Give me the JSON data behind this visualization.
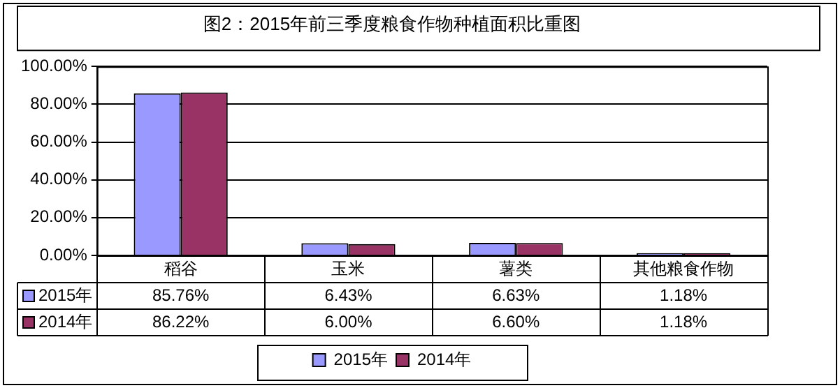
{
  "chart_data": {
    "type": "bar",
    "title": "图2：2015年前三季度粮食作物种植面积比重图",
    "categories": [
      "稻谷",
      "玉米",
      "薯类",
      "其他粮食作物"
    ],
    "series": [
      {
        "name": "2015年",
        "color": "#9999ff",
        "values": [
          85.76,
          6.43,
          6.63,
          1.18
        ],
        "value_labels": [
          "85.76%",
          "6.43%",
          "6.63%",
          "1.18%"
        ]
      },
      {
        "name": "2014年",
        "color": "#993366",
        "values": [
          86.22,
          6.0,
          6.6,
          1.18
        ],
        "value_labels": [
          "86.22%",
          "6.00%",
          "6.60%",
          "1.18%"
        ]
      }
    ],
    "ylim": [
      0,
      100
    ],
    "yticks": [
      {
        "value": 0,
        "label": "0.00%"
      },
      {
        "value": 20,
        "label": "20.00%"
      },
      {
        "value": 40,
        "label": "40.00%"
      },
      {
        "value": 60,
        "label": "60.00%"
      },
      {
        "value": 80,
        "label": "80.00%"
      },
      {
        "value": 100,
        "label": "100.00%"
      }
    ],
    "grid": "y",
    "legend": "bottom"
  }
}
